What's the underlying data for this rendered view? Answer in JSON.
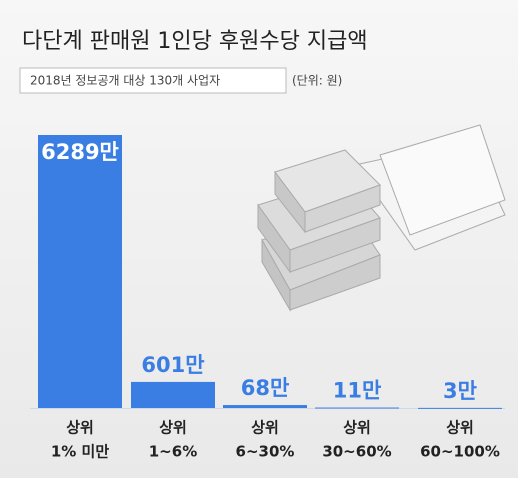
{
  "chart_data": {
    "type": "bar",
    "title": "다단계 판매원 1인당 후원수당 지급액",
    "subtitle": "2018년 정보공개 대상 130개 사업자",
    "unit_note": "(단위: 원)",
    "categories": [
      [
        "상위",
        "1% 미만"
      ],
      [
        "상위",
        "1~6%"
      ],
      [
        "상위",
        "6~30%"
      ],
      [
        "상위",
        "30~60%"
      ],
      [
        "상위",
        "60~100%"
      ]
    ],
    "values": [
      6289,
      601,
      68,
      11,
      3
    ],
    "value_labels": [
      "6289만",
      "601만",
      "68만",
      "11만",
      "3만"
    ],
    "color": "#3b7ee3"
  }
}
